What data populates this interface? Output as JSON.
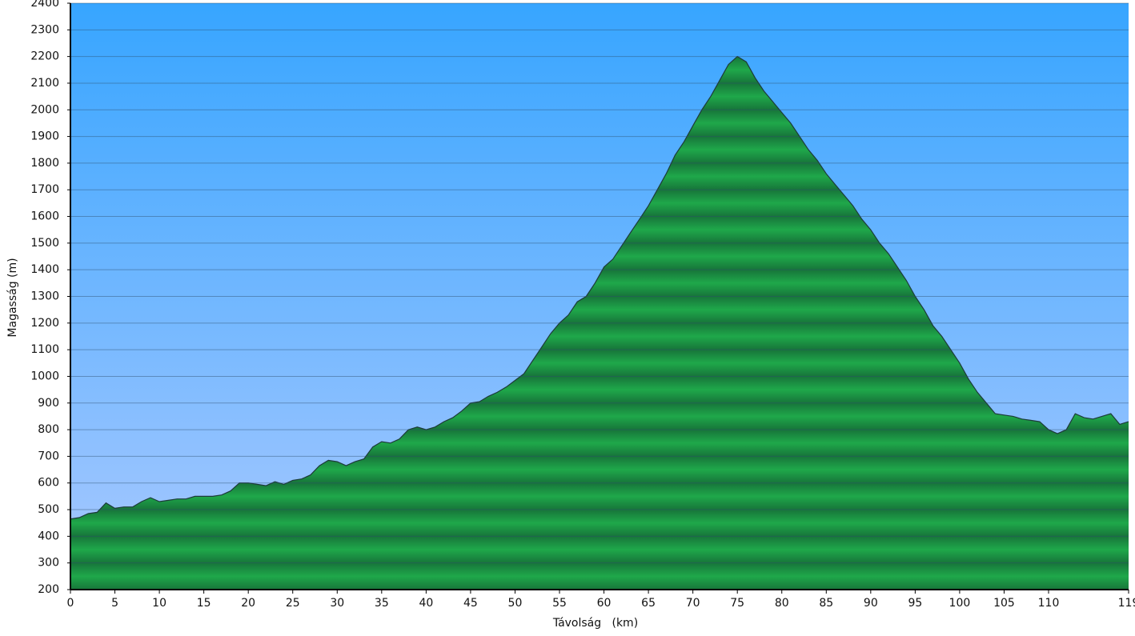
{
  "chart_data": {
    "type": "area",
    "xlabel": "Távolság   (km)",
    "ylabel": "Magasság (m)",
    "x": [
      0,
      1,
      2,
      3,
      4,
      5,
      6,
      7,
      8,
      9,
      10,
      11,
      12,
      13,
      14,
      15,
      16,
      17,
      18,
      19,
      20,
      21,
      22,
      23,
      24,
      25,
      26,
      27,
      28,
      29,
      30,
      31,
      32,
      33,
      34,
      35,
      36,
      37,
      38,
      39,
      40,
      41,
      42,
      43,
      44,
      45,
      46,
      47,
      48,
      49,
      50,
      51,
      52,
      53,
      54,
      55,
      56,
      57,
      58,
      59,
      60,
      61,
      62,
      63,
      64,
      65,
      66,
      67,
      68,
      69,
      70,
      71,
      72,
      73,
      74,
      75,
      76,
      77,
      78,
      79,
      80,
      81,
      82,
      83,
      84,
      85,
      86,
      87,
      88,
      89,
      90,
      91,
      92,
      93,
      94,
      95,
      96,
      97,
      98,
      99,
      100,
      101,
      102,
      103,
      104,
      105,
      106,
      107,
      108,
      109,
      110,
      111,
      112,
      113,
      114,
      115,
      116,
      117,
      118,
      119
    ],
    "values": [
      465,
      470,
      485,
      490,
      525,
      505,
      510,
      510,
      530,
      545,
      530,
      535,
      540,
      540,
      550,
      550,
      550,
      555,
      570,
      600,
      600,
      595,
      590,
      605,
      595,
      610,
      615,
      630,
      665,
      685,
      680,
      665,
      680,
      690,
      735,
      755,
      750,
      765,
      800,
      810,
      800,
      810,
      830,
      845,
      870,
      900,
      905,
      925,
      940,
      960,
      985,
      1010,
      1060,
      1110,
      1160,
      1200,
      1230,
      1280,
      1300,
      1350,
      1410,
      1440,
      1490,
      1540,
      1590,
      1640,
      1700,
      1760,
      1830,
      1880,
      1940,
      2000,
      2050,
      2110,
      2170,
      2200,
      2180,
      2120,
      2070,
      2030,
      1990,
      1950,
      1900,
      1850,
      1810,
      1760,
      1720,
      1680,
      1640,
      1590,
      1550,
      1500,
      1460,
      1410,
      1360,
      1300,
      1250,
      1190,
      1150,
      1100,
      1050,
      990,
      940,
      900,
      860,
      855,
      850,
      840,
      835,
      830,
      800,
      785,
      800,
      860,
      845,
      840,
      850,
      860,
      820,
      830
    ],
    "color": "#1fa84a",
    "xlim": [
      0,
      119
    ],
    "xticks": [
      0,
      5,
      10,
      15,
      20,
      25,
      30,
      35,
      40,
      45,
      50,
      55,
      60,
      65,
      70,
      75,
      80,
      85,
      90,
      95,
      100,
      105,
      110,
      119
    ],
    "ylim": [
      200,
      2400
    ],
    "yticks": [
      200,
      300,
      400,
      500,
      600,
      700,
      800,
      900,
      1000,
      1100,
      1200,
      1300,
      1400,
      1500,
      1600,
      1700,
      1800,
      1900,
      2000,
      2100,
      2200,
      2300,
      2400
    ],
    "grid": true
  }
}
